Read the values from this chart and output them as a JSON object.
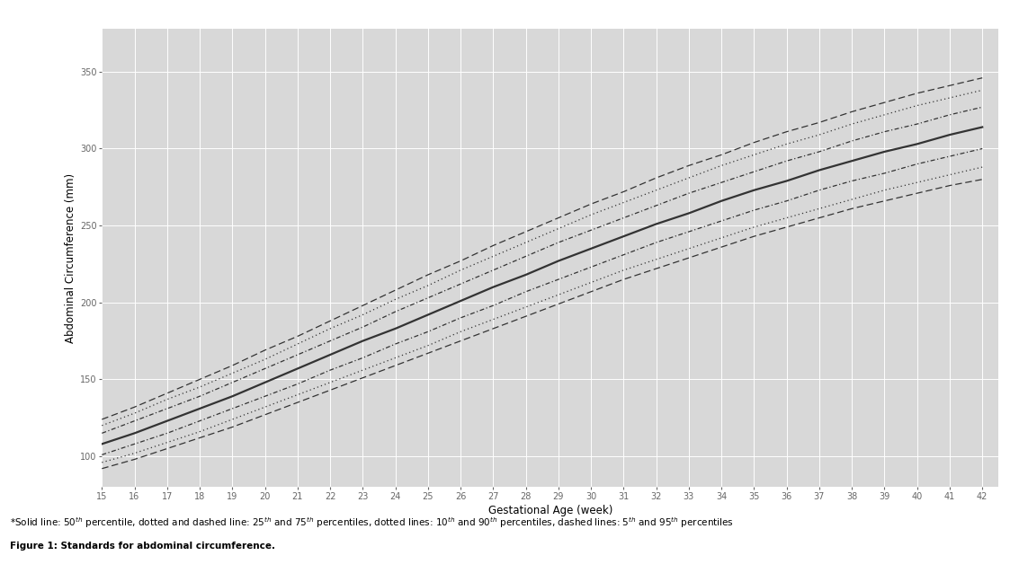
{
  "xlabel": "Gestational Age (week)",
  "ylabel": "Abdominal Circumference (mm)",
  "background_color": "#d8d8d8",
  "line_color": "#333333",
  "xlim": [
    15,
    42.5
  ],
  "ylim": [
    80,
    378
  ],
  "xticks": [
    15,
    16,
    17,
    18,
    19,
    20,
    21,
    22,
    23,
    24,
    25,
    26,
    27,
    28,
    29,
    30,
    31,
    32,
    33,
    34,
    35,
    36,
    37,
    38,
    39,
    40,
    41,
    42
  ],
  "yticks": [
    100,
    150,
    200,
    250,
    300,
    350
  ],
  "weeks": [
    15,
    16,
    17,
    18,
    19,
    20,
    21,
    22,
    23,
    24,
    25,
    26,
    27,
    28,
    29,
    30,
    31,
    32,
    33,
    34,
    35,
    36,
    37,
    38,
    39,
    40,
    41,
    42
  ],
  "p5": [
    92,
    98,
    105,
    112,
    119,
    127,
    135,
    143,
    151,
    159,
    167,
    175,
    183,
    191,
    199,
    207,
    215,
    222,
    229,
    236,
    243,
    249,
    255,
    261,
    266,
    271,
    276,
    280
  ],
  "p10": [
    96,
    102,
    109,
    116,
    124,
    132,
    140,
    148,
    156,
    164,
    172,
    181,
    189,
    197,
    205,
    213,
    221,
    228,
    235,
    242,
    249,
    255,
    261,
    267,
    273,
    278,
    283,
    288
  ],
  "p25": [
    101,
    108,
    115,
    123,
    131,
    139,
    147,
    156,
    164,
    173,
    181,
    190,
    198,
    207,
    215,
    223,
    231,
    239,
    246,
    253,
    260,
    266,
    273,
    279,
    284,
    290,
    295,
    300
  ],
  "p50": [
    108,
    115,
    123,
    131,
    139,
    148,
    157,
    166,
    175,
    183,
    192,
    201,
    210,
    218,
    227,
    235,
    243,
    251,
    258,
    266,
    273,
    279,
    286,
    292,
    298,
    303,
    309,
    314
  ],
  "p75": [
    115,
    123,
    131,
    139,
    148,
    157,
    166,
    175,
    184,
    194,
    203,
    212,
    221,
    230,
    239,
    247,
    255,
    263,
    271,
    278,
    285,
    292,
    298,
    305,
    311,
    316,
    322,
    327
  ],
  "p90": [
    120,
    128,
    137,
    145,
    154,
    163,
    173,
    183,
    192,
    202,
    211,
    221,
    230,
    239,
    248,
    257,
    265,
    273,
    281,
    289,
    296,
    303,
    309,
    316,
    322,
    328,
    333,
    338
  ],
  "p95": [
    124,
    132,
    141,
    150,
    159,
    169,
    178,
    188,
    198,
    208,
    218,
    227,
    237,
    246,
    255,
    264,
    272,
    281,
    289,
    296,
    304,
    311,
    317,
    324,
    330,
    336,
    341,
    346
  ]
}
